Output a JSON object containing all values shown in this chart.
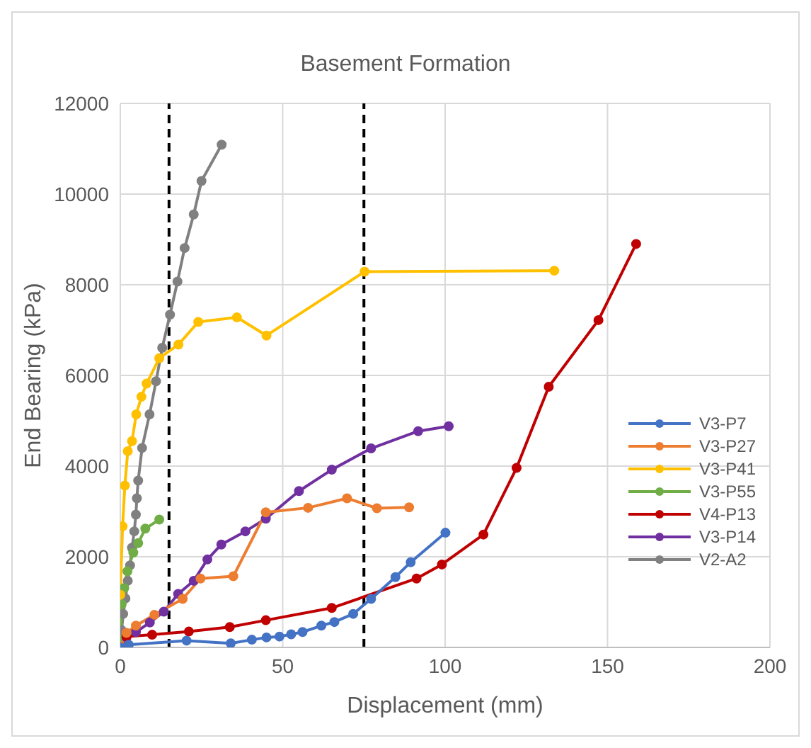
{
  "chart_data": {
    "type": "line",
    "title": "Basement Formation",
    "xlabel": "Displacement (mm)",
    "ylabel": "End Bearing (kPa)",
    "xlim": [
      0,
      200
    ],
    "xticks": [
      0,
      50,
      100,
      150,
      200
    ],
    "ylim": [
      0,
      12000
    ],
    "yticks": [
      0,
      2000,
      4000,
      6000,
      8000,
      10000,
      12000
    ],
    "grid": true,
    "legend": "right",
    "marker": "circle",
    "line_style": "solid",
    "ref_lines": [
      {
        "axis": "x",
        "value": 15,
        "color": "#000000",
        "line_style": "dashed"
      },
      {
        "axis": "x",
        "value": 75,
        "color": "#000000",
        "line_style": "dashed"
      }
    ],
    "series": [
      {
        "name": "V3-P7",
        "color": "#4472c4",
        "x": [
          0,
          2.6,
          20.4,
          34.0,
          40.5,
          45.0,
          49.0,
          52.6,
          56.1,
          61.9,
          65.9,
          71.7,
          77.2,
          84.7,
          89.4,
          100.1
        ],
        "values": [
          0,
          60,
          150,
          90,
          170,
          220,
          240,
          290,
          340,
          480,
          560,
          740,
          1070,
          1550,
          1880,
          2530
        ]
      },
      {
        "name": "V3-P27",
        "color": "#ed7d31",
        "x": [
          0,
          1.9,
          4.8,
          10.5,
          19.2,
          24.7,
          34.8,
          44.8,
          57.8,
          69.8,
          79.0,
          88.9
        ],
        "values": [
          0,
          320,
          480,
          720,
          1070,
          1520,
          1570,
          2980,
          3080,
          3290,
          3070,
          3090
        ]
      },
      {
        "name": "V3-P41",
        "color": "#ffc000",
        "x": [
          0,
          0.7,
          1.4,
          2.3,
          3.6,
          4.9,
          6.5,
          8.1,
          12.0,
          17.9,
          24.0,
          35.9,
          45.0,
          75.2,
          133.6
        ],
        "values": [
          1160,
          2670,
          3570,
          4330,
          4550,
          5140,
          5530,
          5820,
          6380,
          6680,
          7180,
          7280,
          6880,
          8290,
          8310
        ]
      },
      {
        "name": "V3-P55",
        "color": "#70ad47",
        "x": [
          0,
          0.4,
          1.2,
          2.2,
          4.0,
          5.5,
          7.7,
          12.0
        ],
        "values": [
          0,
          950,
          1310,
          1680,
          2090,
          2300,
          2620,
          2820
        ]
      },
      {
        "name": "V4-P13",
        "color": "#c00000",
        "x": [
          0,
          1.9,
          9.8,
          21.1,
          33.7,
          44.8,
          65.1,
          91.2,
          99.0,
          111.8,
          122.0,
          131.9,
          147.2,
          158.8
        ],
        "values": [
          0,
          240,
          280,
          350,
          450,
          600,
          870,
          1520,
          1830,
          2490,
          3960,
          5750,
          7220,
          8900
        ]
      },
      {
        "name": "V3-P14",
        "color": "#7030a0",
        "x": [
          0,
          1.9,
          4.8,
          9.1,
          13.4,
          17.8,
          22.6,
          26.8,
          31.1,
          38.5,
          44.8,
          55.0,
          65.1,
          77.2,
          91.7,
          101.1
        ],
        "values": [
          0,
          220,
          340,
          550,
          790,
          1180,
          1470,
          1940,
          2270,
          2560,
          2840,
          3450,
          3920,
          4390,
          4770,
          4880
        ]
      },
      {
        "name": "V2-A2",
        "color": "#808080",
        "x": [
          0,
          0.4,
          0.9,
          1.6,
          2.3,
          3.0,
          3.6,
          4.3,
          4.8,
          5.1,
          5.5,
          6.7,
          9.0,
          11.0,
          12.9,
          15.3,
          17.6,
          19.8,
          22.6,
          25.0,
          31.2
        ],
        "values": [
          0,
          380,
          740,
          1080,
          1470,
          1810,
          2200,
          2560,
          2930,
          3290,
          3680,
          4400,
          5140,
          5870,
          6610,
          7340,
          8070,
          8810,
          9550,
          10290,
          11090
        ]
      }
    ]
  }
}
